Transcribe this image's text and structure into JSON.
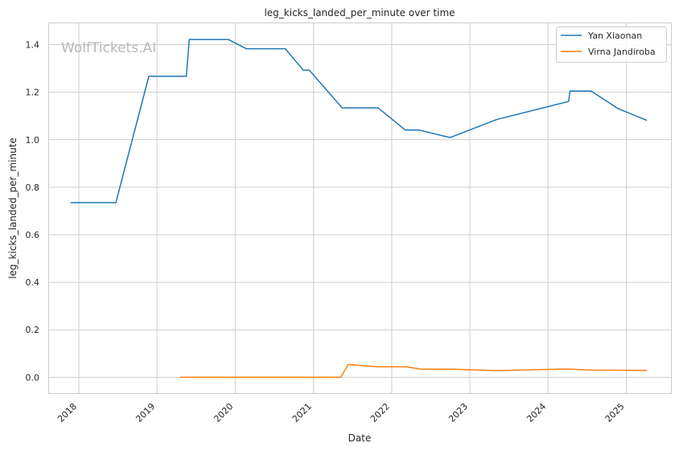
{
  "chart_data": {
    "type": "line",
    "title": "leg_kicks_landed_per_minute over time",
    "xlabel": "Date",
    "ylabel": "leg_kicks_landed_per_minute",
    "watermark": "WolfTickets.AI",
    "x_axis_type": "date",
    "xlim": [
      "2017-08-15",
      "2025-08-01"
    ],
    "ylim": [
      -0.07,
      1.49
    ],
    "x_ticks": [
      {
        "date": "2018-01-01",
        "label": "2018"
      },
      {
        "date": "2019-01-01",
        "label": "2019"
      },
      {
        "date": "2020-01-01",
        "label": "2020"
      },
      {
        "date": "2021-01-01",
        "label": "2021"
      },
      {
        "date": "2022-01-01",
        "label": "2022"
      },
      {
        "date": "2023-01-01",
        "label": "2023"
      },
      {
        "date": "2024-01-01",
        "label": "2024"
      },
      {
        "date": "2025-01-01",
        "label": "2025"
      }
    ],
    "y_ticks": [
      {
        "value": 0.0,
        "label": "0.0"
      },
      {
        "value": 0.2,
        "label": "0.2"
      },
      {
        "value": 0.4,
        "label": "0.4"
      },
      {
        "value": 0.6,
        "label": "0.6"
      },
      {
        "value": 0.8,
        "label": "0.8"
      },
      {
        "value": 1.0,
        "label": "1.0"
      },
      {
        "value": 1.2,
        "label": "1.2"
      },
      {
        "value": 1.4,
        "label": "1.4"
      }
    ],
    "grid": true,
    "legend_position": "top-right",
    "series": [
      {
        "name": "Yan Xiaonan",
        "color": "#1f77b4",
        "points": [
          {
            "x": "2017-11-25",
            "y": 0.735
          },
          {
            "x": "2018-06-23",
            "y": 0.735
          },
          {
            "x": "2018-11-24",
            "y": 1.267
          },
          {
            "x": "2019-05-18",
            "y": 1.267
          },
          {
            "x": "2019-06-01",
            "y": 1.422
          },
          {
            "x": "2019-11-30",
            "y": 1.422
          },
          {
            "x": "2020-02-22",
            "y": 1.383
          },
          {
            "x": "2020-08-22",
            "y": 1.383
          },
          {
            "x": "2020-11-14",
            "y": 1.293
          },
          {
            "x": "2020-12-12",
            "y": 1.293
          },
          {
            "x": "2021-05-15",
            "y": 1.134
          },
          {
            "x": "2021-10-30",
            "y": 1.134
          },
          {
            "x": "2022-03-05",
            "y": 1.041
          },
          {
            "x": "2022-05-07",
            "y": 1.041
          },
          {
            "x": "2022-10-01",
            "y": 1.009
          },
          {
            "x": "2023-05-06",
            "y": 1.085
          },
          {
            "x": "2024-04-06",
            "y": 1.161
          },
          {
            "x": "2024-04-13",
            "y": 1.205
          },
          {
            "x": "2024-07-20",
            "y": 1.205
          },
          {
            "x": "2024-11-23",
            "y": 1.131
          },
          {
            "x": "2025-04-05",
            "y": 1.082
          }
        ]
      },
      {
        "name": "Virna Jandiroba",
        "color": "#ff7f0e",
        "points": [
          {
            "x": "2019-04-20",
            "y": 0.0
          },
          {
            "x": "2021-05-08",
            "y": 0.0
          },
          {
            "x": "2021-06-12",
            "y": 0.054
          },
          {
            "x": "2021-10-30",
            "y": 0.044
          },
          {
            "x": "2022-03-12",
            "y": 0.044
          },
          {
            "x": "2022-05-21",
            "y": 0.034
          },
          {
            "x": "2022-10-15",
            "y": 0.034
          },
          {
            "x": "2023-05-06",
            "y": 0.028
          },
          {
            "x": "2024-03-23",
            "y": 0.035
          },
          {
            "x": "2024-07-27",
            "y": 0.03
          },
          {
            "x": "2025-04-05",
            "y": 0.029
          }
        ]
      }
    ]
  }
}
